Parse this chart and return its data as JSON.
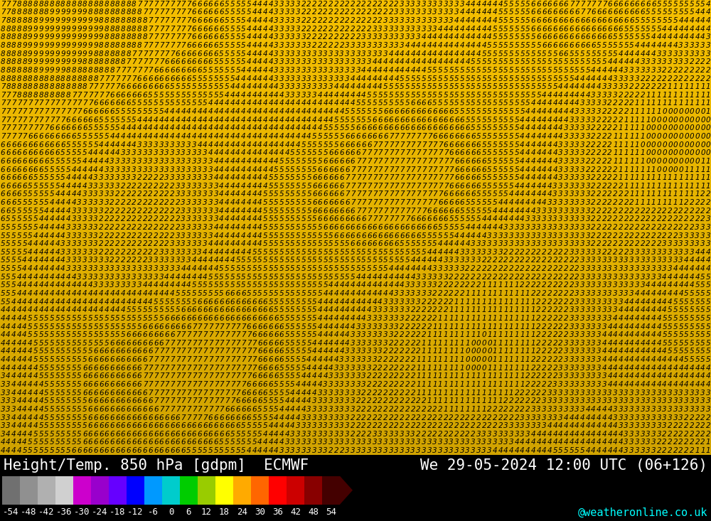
{
  "title_left": "Height/Temp. 850 hPa [gdpm]  ECMWF",
  "title_right": "We 29-05-2024 12:00 UTC (06+126)",
  "credit": "@weatheronline.co.uk",
  "colorbar_values": [
    -54,
    -48,
    -42,
    -36,
    -30,
    -24,
    -18,
    -12,
    -6,
    0,
    6,
    12,
    18,
    24,
    30,
    36,
    42,
    48,
    54
  ],
  "colorbar_colors": [
    "#707070",
    "#909090",
    "#b0b0b0",
    "#d0d0d0",
    "#cc00cc",
    "#9900cc",
    "#6600ff",
    "#0000ff",
    "#0099ff",
    "#00cccc",
    "#00cc00",
    "#99cc00",
    "#ffff00",
    "#ffaa00",
    "#ff6600",
    "#ff0000",
    "#cc0000",
    "#880000",
    "#440000"
  ],
  "bg_color_top": "#f5c800",
  "bg_color_bottom": "#e8a000",
  "bottom_bar_color": "#000000",
  "title_font_size": 15,
  "credit_font_size": 11,
  "tick_font_size": 9,
  "fig_width": 10.0,
  "fig_height": 7.33,
  "dpi": 100,
  "rows": 55,
  "cols": 130
}
